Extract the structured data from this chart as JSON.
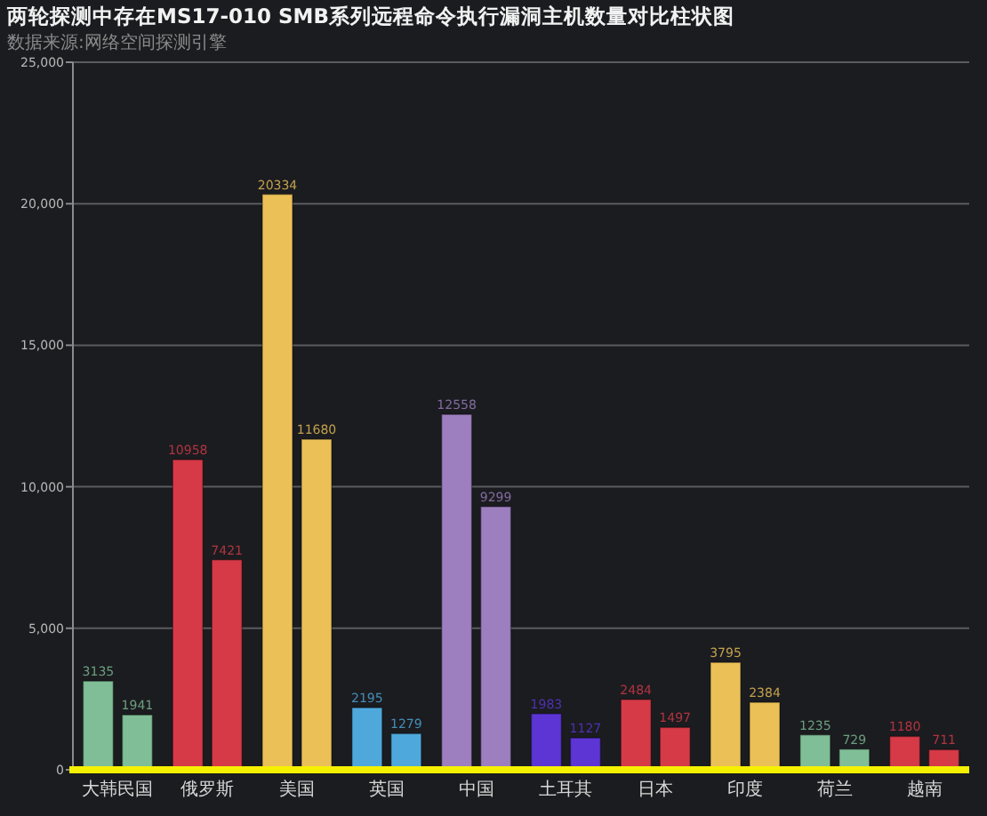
{
  "chart_data": {
    "type": "bar",
    "title": "两轮探测中存在MS17-010 SMB系列远程命令执行漏洞主机数量对比柱状图",
    "subtitle": "数据来源:网络空间探测引擎",
    "categories": [
      "大韩民国",
      "俄罗斯",
      "美国",
      "英国",
      "中国",
      "土耳其",
      "日本",
      "印度",
      "荷兰",
      "越南"
    ],
    "series": [
      {
        "colors": [
          "#7fbe96",
          "#d63a47",
          "#ebc057",
          "#4fa8dc",
          "#9d7fbf",
          "#5c35d4",
          "#d63a47",
          "#ebc057",
          "#7fbe96",
          "#d63a47"
        ],
        "values": [
          3135,
          10958,
          20334,
          2195,
          12558,
          1983,
          2484,
          3795,
          1235,
          1180
        ]
      },
      {
        "colors": [
          "#7fbe96",
          "#d63a47",
          "#ebc057",
          "#4fa8dc",
          "#9d7fbf",
          "#5c35d4",
          "#d63a47",
          "#ebc057",
          "#7fbe96",
          "#d63a47"
        ],
        "values": [
          1941,
          7421,
          11680,
          1279,
          9299,
          1127,
          1497,
          2384,
          729,
          711
        ]
      }
    ],
    "ylim": [
      0,
      25000
    ],
    "yticks": [
      0,
      {
        "value": 5000,
        "label": "5,000"
      },
      {
        "value": 10000,
        "label": "10,000"
      },
      {
        "value": 15000,
        "label": "15,000"
      },
      {
        "value": 20000,
        "label": "20,000"
      },
      {
        "value": 25000,
        "label": "25,000"
      }
    ],
    "grid": "y",
    "data_labels": true
  }
}
